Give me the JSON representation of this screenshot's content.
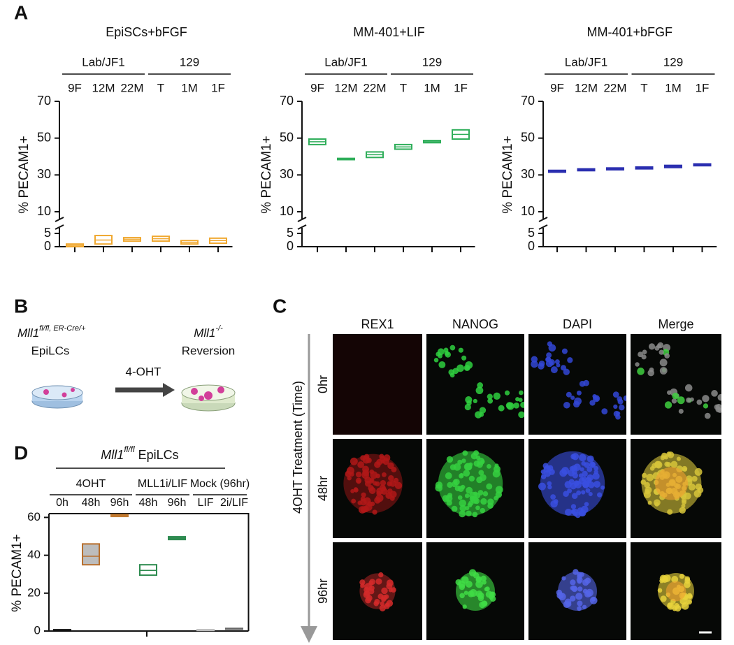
{
  "panel_labels": [
    "A",
    "B",
    "C",
    "D"
  ],
  "chart_data": [
    {
      "type": "box",
      "title": "EpiSCs+bFGF",
      "y_label": "% PECAM1+",
      "color": "#f0a830",
      "filled": false,
      "ylim": [
        0,
        70
      ],
      "axis_break": [
        5,
        10
      ],
      "yticks": [
        0,
        5,
        10,
        30,
        50,
        70
      ],
      "groups": [
        {
          "label": "Lab/JF1",
          "categories": [
            "9F",
            "12M",
            "22M"
          ],
          "low": [
            0,
            1,
            2.1
          ],
          "median": [
            0.5,
            2.5,
            2.8
          ],
          "high": [
            1,
            4.2,
            3.4
          ]
        },
        {
          "label": "129",
          "categories": [
            "T",
            "1M",
            "1F"
          ],
          "low": [
            2.1,
            1,
            1.3
          ],
          "median": [
            3,
            1.5,
            2.3
          ],
          "high": [
            3.9,
            2.3,
            3.2
          ]
        }
      ]
    },
    {
      "type": "box",
      "title": "MM-401+LIF",
      "y_label": "% PECAM1+",
      "color": "#2fae5a",
      "filled": false,
      "ylim": [
        0,
        70
      ],
      "axis_break": [
        5,
        10
      ],
      "yticks": [
        0,
        5,
        10,
        30,
        50,
        70
      ],
      "groups": [
        {
          "label": "Lab/JF1",
          "categories": [
            "9F",
            "12M",
            "22M"
          ],
          "low": [
            46.5,
            38.3,
            39.5
          ],
          "median": [
            48,
            38.6,
            41
          ],
          "high": [
            49.5,
            39,
            42.5
          ]
        },
        {
          "label": "129",
          "categories": [
            "T",
            "1M",
            "1F"
          ],
          "low": [
            44,
            47.5,
            49.5
          ],
          "median": [
            45.2,
            48,
            52
          ],
          "high": [
            46.5,
            48.7,
            54.5
          ]
        }
      ]
    },
    {
      "type": "box",
      "title": "MM-401+bFGF",
      "y_label": "% PECAM1+",
      "color": "#2b2fb0",
      "filled": true,
      "ylim": [
        0,
        70
      ],
      "axis_break": [
        5,
        10
      ],
      "yticks": [
        0,
        5,
        10,
        30,
        50,
        70
      ],
      "groups": [
        {
          "label": "Lab/JF1",
          "categories": [
            "9F",
            "12M",
            "22M"
          ],
          "low": [
            31.5,
            32.3,
            32.8
          ],
          "median": [
            32,
            32.8,
            33.3
          ],
          "high": [
            32.5,
            33.3,
            33.8
          ]
        },
        {
          "label": "129",
          "categories": [
            "T",
            "1M",
            "1F"
          ],
          "low": [
            33.3,
            34,
            35
          ],
          "median": [
            33.8,
            34.6,
            35.5
          ],
          "high": [
            34.3,
            35.2,
            36
          ]
        }
      ]
    },
    {
      "type": "box",
      "title": {
        "gene": "Mll1",
        "sup": "fl/fl",
        "rest": "EpiLCs"
      },
      "y_label": "% PECAM1+",
      "ylim": [
        0,
        62
      ],
      "yticks": [
        0,
        20,
        40,
        60
      ],
      "groups": [
        {
          "label": "4OHT",
          "categories": [
            "0h",
            "48h",
            "96h"
          ],
          "low": [
            0.3,
            35,
            60.5
          ],
          "median": [
            0.5,
            39.5,
            61
          ],
          "high": [
            0.7,
            46,
            61.5
          ],
          "colors": [
            "#111111",
            "#b8702e",
            "#c27a30"
          ],
          "fills": [
            "#111111",
            "#bdbdbd",
            "#c27a30"
          ]
        },
        {
          "label": "MLL1i/LIF",
          "categories": [
            "48h",
            "96h"
          ],
          "low": [
            29.5,
            48.3
          ],
          "median": [
            32,
            49
          ],
          "high": [
            35,
            49.8
          ],
          "colors": [
            "#2e8b50",
            "#2e8b50"
          ],
          "fills": [
            "#ffffff",
            "#2e8b50"
          ]
        },
        {
          "label": "Mock (96hr)",
          "categories": [
            "LIF",
            "2i/LIF"
          ],
          "low": [
            0.3,
            1
          ],
          "median": [
            0.5,
            1.2
          ],
          "high": [
            0.7,
            1.4
          ],
          "colors": [
            "#bbbbbb",
            "#666666"
          ],
          "fills": [
            "#bbbbbb",
            "#666666"
          ]
        }
      ]
    }
  ],
  "diagram": {
    "left": {
      "gene": "Mll1",
      "sup": "fl/fl, ER-Cre/+",
      "cell": "EpiLCs"
    },
    "arrow": "4-OHT",
    "right": {
      "gene": "Mll1",
      "sup": "-/-",
      "cell": "Reversion"
    }
  },
  "micrograph": {
    "columns": [
      "REX1",
      "NANOG",
      "DAPI",
      "Merge"
    ],
    "rows": [
      "0hr",
      "48hr",
      "96hr"
    ],
    "axis_label": "4OHT Treatment (Time)"
  }
}
